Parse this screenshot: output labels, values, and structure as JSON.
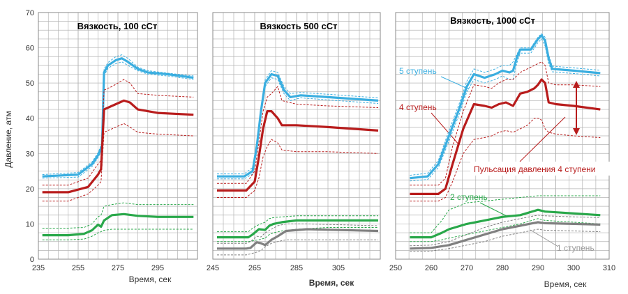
{
  "ylabel": "Давление, атм",
  "y_ticks": [
    "0",
    "10",
    "20",
    "30",
    "40",
    "50",
    "60",
    "70"
  ],
  "colors": {
    "stage5": "#3aaee0",
    "stage4": "#b81c1c",
    "stage2": "#29a84a",
    "stage1": "#808080",
    "grid": "#b4b4b4",
    "annot_red": "#b81c1c",
    "annot_blue": "#3aaee0",
    "annot_green": "#29a84a",
    "annot_gray": "#999999"
  },
  "chart_data": [
    {
      "type": "line",
      "title": "Вязкость, 100 сСт",
      "xlabel": "Время, сек",
      "xlim": [
        235,
        315
      ],
      "ylim": [
        0,
        70
      ],
      "x_ticks": [
        "235",
        "255",
        "275",
        "295"
      ],
      "grid": true,
      "series": [
        {
          "key": "stage5",
          "x": [
            237,
            255,
            262,
            265,
            267,
            268,
            270,
            274,
            277,
            280,
            285,
            290,
            300,
            313
          ],
          "y": [
            23.5,
            24,
            27,
            29.5,
            32,
            53,
            55,
            56.5,
            57,
            56,
            54,
            53,
            52.5,
            51.5
          ],
          "upper": [
            24,
            24.6,
            27.6,
            30.2,
            33,
            54,
            55.8,
            57.5,
            58,
            57,
            54.5,
            53.5,
            52.8,
            52
          ],
          "lower": [
            23,
            23.3,
            26.3,
            28.8,
            31,
            52,
            54.2,
            55.5,
            56,
            55,
            53.5,
            52.5,
            52,
            51
          ]
        },
        {
          "key": "stage4",
          "x": [
            237,
            250,
            260,
            265,
            266.5,
            268,
            272,
            278,
            281,
            285,
            295,
            313
          ],
          "y": [
            19,
            19,
            20.5,
            24,
            25.5,
            42.5,
            43.5,
            45,
            44.5,
            42.5,
            41.5,
            41
          ],
          "upper": [
            21,
            21,
            23,
            27,
            28,
            48,
            49,
            51,
            50,
            47,
            46.5,
            46
          ],
          "lower": [
            16.5,
            16.5,
            18.5,
            21,
            22,
            36,
            37,
            38.5,
            37.5,
            36,
            35.5,
            35
          ]
        },
        {
          "key": "stage2",
          "x": [
            237,
            250,
            258,
            262,
            265,
            266.5,
            268,
            272,
            278,
            285,
            295,
            313
          ],
          "y": [
            6.8,
            6.8,
            7.2,
            8.2,
            9.8,
            9.2,
            11,
            12.5,
            12.8,
            12.3,
            12,
            12
          ],
          "upper": [
            8.8,
            8.8,
            9,
            10,
            12,
            12.5,
            15,
            15.5,
            16,
            15.5,
            15.5,
            15.5
          ],
          "lower": [
            5.5,
            5.5,
            5.7,
            6.5,
            7.5,
            7.8,
            8.2,
            8.5,
            8.5,
            8.5,
            8.5,
            8.5
          ]
        }
      ]
    },
    {
      "type": "line",
      "title": "Вязкость 500 сСт",
      "xlabel": "Время, сек",
      "xlim": [
        245,
        325
      ],
      "ylim": [
        0,
        70
      ],
      "x_ticks": [
        "245",
        "265",
        "285",
        "305"
      ],
      "grid": true,
      "series": [
        {
          "key": "stage5",
          "x": [
            247,
            260,
            264,
            266,
            268,
            270,
            273,
            276,
            279,
            282,
            287,
            300,
            324
          ],
          "y": [
            23.5,
            23.5,
            25,
            32,
            42,
            50,
            52.5,
            52,
            48,
            46,
            46.5,
            46,
            45
          ],
          "upper": [
            24.2,
            24.2,
            26,
            33,
            43,
            51,
            53.5,
            53,
            49,
            47,
            47.3,
            46.8,
            45.8
          ],
          "lower": [
            22.8,
            22.8,
            24.2,
            31,
            41,
            49,
            51.5,
            51,
            47,
            45,
            45.8,
            45.2,
            44.2
          ]
        },
        {
          "key": "stage4",
          "x": [
            247,
            261,
            265,
            267,
            269,
            271,
            273,
            276,
            278,
            285,
            300,
            324
          ],
          "y": [
            19.5,
            19.5,
            22,
            29,
            37,
            42,
            42,
            40,
            38,
            38,
            37.5,
            36.5
          ],
          "upper": [
            21.5,
            21.5,
            25,
            33,
            42,
            46,
            47,
            49,
            45,
            44,
            43.5,
            43
          ],
          "lower": [
            17.5,
            17.5,
            19.5,
            23,
            29,
            32,
            34,
            33,
            31,
            30.5,
            30.5,
            30
          ]
        },
        {
          "key": "stage2",
          "x": [
            247,
            262,
            264,
            267,
            270,
            272,
            274,
            278,
            285,
            300,
            324
          ],
          "y": [
            6.2,
            6.2,
            7,
            8.5,
            8.3,
            9.5,
            10,
            10.5,
            11,
            11,
            11
          ],
          "upper": [
            7.8,
            7.8,
            8.8,
            9.8,
            10.5,
            11.5,
            11.8,
            12,
            12.3,
            12.3,
            12.3
          ],
          "lower": [
            5,
            5,
            5.2,
            5.5,
            6,
            7,
            7.5,
            8,
            8.5,
            9,
            9
          ]
        },
        {
          "key": "stage1",
          "x": [
            247,
            261,
            263,
            266,
            268,
            270,
            273,
            276,
            280,
            290,
            324
          ],
          "y": [
            3,
            3,
            3.2,
            4.8,
            4.5,
            4,
            5.5,
            6.5,
            8,
            8.5,
            8
          ],
          "upper": [
            4.5,
            4.5,
            5,
            6.5,
            6.3,
            7.5,
            8.5,
            9.5,
            10,
            10,
            9.5
          ],
          "lower": [
            1.2,
            1.2,
            1.5,
            2,
            2.5,
            3.5,
            4.5,
            5,
            5.5,
            5.5,
            5.5
          ]
        }
      ]
    },
    {
      "type": "line",
      "title": "Вязкость, 1000 сСт",
      "xlabel": "Время, сек",
      "xlim": [
        250,
        310
      ],
      "ylim": [
        0,
        70
      ],
      "x_ticks": [
        "250",
        "260",
        "270",
        "280",
        "290",
        "300",
        "310"
      ],
      "grid": true,
      "annotations": [
        "5 ступень",
        "4 ступень",
        "Пульсация давления 4 ступени",
        "2 ступень",
        "1 ступень"
      ],
      "series": [
        {
          "key": "stage5",
          "x": [
            254,
            259,
            262,
            265,
            268,
            270,
            272,
            275,
            278,
            280,
            282,
            283,
            284,
            285,
            288,
            289,
            290,
            291,
            292,
            293,
            294,
            300,
            307.5
          ],
          "y": [
            23,
            23.5,
            27,
            35,
            43,
            49,
            52.5,
            51.5,
            52.5,
            53.5,
            53,
            53.5,
            57,
            59.5,
            59.5,
            61,
            62.5,
            63.5,
            62,
            57,
            54,
            53.5,
            52.8
          ],
          "upper": [
            23.8,
            24.4,
            28,
            36.5,
            44.5,
            50.5,
            54,
            53,
            54,
            55,
            55,
            56,
            58,
            60,
            60,
            61.5,
            63,
            64,
            63,
            58,
            54.8,
            54.3,
            53.6
          ],
          "lower": [
            22.2,
            22.6,
            26,
            33.5,
            41.5,
            47.5,
            51,
            50,
            51,
            52,
            51,
            51,
            55.5,
            58.5,
            58.5,
            60,
            61.5,
            62.5,
            60.5,
            55.5,
            53.2,
            52.7,
            52
          ]
        },
        {
          "key": "stage4",
          "x": [
            254,
            262,
            264,
            266,
            269,
            272,
            275,
            277,
            279,
            281,
            283,
            285,
            287,
            289,
            290,
            291,
            292,
            293,
            295,
            300,
            307.5
          ],
          "y": [
            18.5,
            18.5,
            20,
            27,
            37,
            44,
            43.5,
            43,
            44,
            44.5,
            43.5,
            47,
            47.5,
            48.5,
            49.5,
            51,
            50,
            44.5,
            44,
            43.5,
            42.5
          ],
          "upper": [
            21,
            21,
            23,
            32,
            42,
            49.5,
            49,
            48.5,
            50,
            51,
            51,
            53,
            54,
            55,
            55.5,
            56,
            55,
            50,
            49.5,
            49.5,
            49
          ],
          "lower": [
            16.5,
            16.5,
            17.5,
            22,
            30,
            34,
            34.5,
            35,
            36,
            36.5,
            36,
            37,
            38,
            40,
            40,
            39.5,
            37,
            36,
            35.5,
            35,
            34.5
          ]
        },
        {
          "key": "stage2",
          "x": [
            254,
            260,
            263,
            265,
            270,
            275,
            280,
            285,
            290,
            292,
            300,
            307.5
          ],
          "y": [
            6.2,
            6.2,
            7.5,
            8.5,
            10,
            11,
            12,
            12.5,
            14,
            13.5,
            13,
            12.5
          ],
          "upper": [
            7.5,
            7.5,
            11,
            14,
            16,
            16.5,
            17,
            17.5,
            18,
            18,
            18,
            18
          ],
          "lower": [
            5,
            5,
            5.5,
            6,
            7,
            8,
            9,
            10,
            11.5,
            11,
            10.5,
            10
          ]
        },
        {
          "key": "stage1",
          "x": [
            254,
            260,
            265,
            270,
            275,
            280,
            285,
            290,
            292,
            300,
            307.5
          ],
          "y": [
            3,
            3.2,
            4,
            5.5,
            7,
            8.5,
            9.5,
            10.5,
            10.2,
            10,
            9.8
          ],
          "upper": [
            3.8,
            4,
            5,
            7,
            9,
            10.5,
            11.5,
            12.5,
            12.3,
            12,
            11.8
          ],
          "lower": [
            2.2,
            2.3,
            3,
            4,
            5,
            6.5,
            7.5,
            8.5,
            8.2,
            8,
            7.8
          ]
        }
      ]
    }
  ]
}
